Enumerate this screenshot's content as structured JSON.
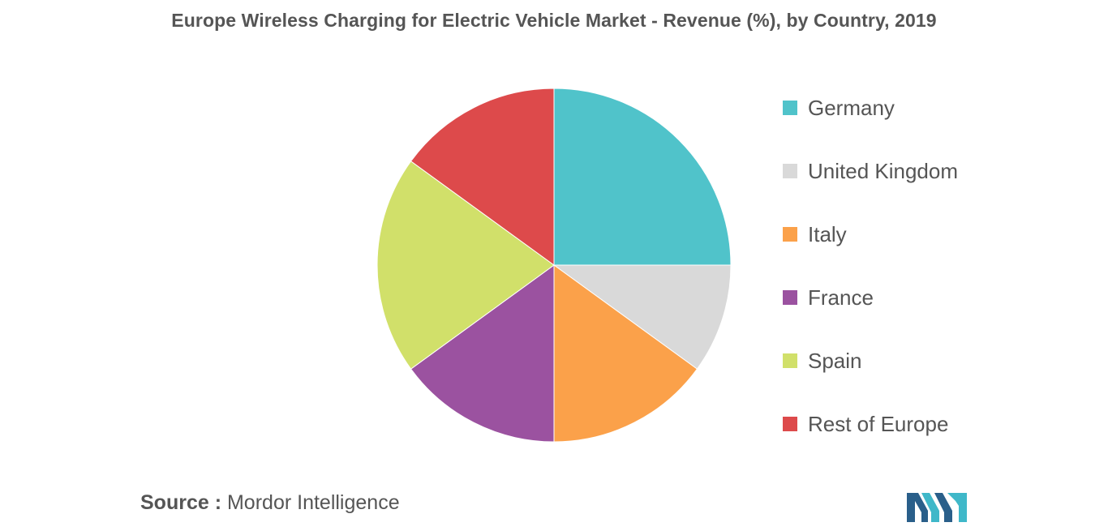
{
  "title": "Europe Wireless Charging for Electric Vehicle Market - Revenue (%), by Country, 2019",
  "source": {
    "label": "Source :",
    "text": "Mordor Intelligence"
  },
  "logo": {
    "icon": "mordor-intelligence-logo",
    "colors": [
      "#2a5f8a",
      "#3fb8c9"
    ]
  },
  "chart_data": {
    "type": "pie",
    "title": "Europe Wireless Charging for Electric Vehicle Market - Revenue (%), by Country, 2019",
    "start_angle": "12 o'clock",
    "direction": "clockwise",
    "legend_position": "right",
    "slices": [
      {
        "label": "Germany",
        "value": 25,
        "color": "#50c3ca"
      },
      {
        "label": "United Kingdom",
        "value": 10,
        "color": "#d9d9d9"
      },
      {
        "label": "Italy",
        "value": 15,
        "color": "#fba14a"
      },
      {
        "label": "France",
        "value": 15,
        "color": "#9b52a0"
      },
      {
        "label": "Spain",
        "value": 20,
        "color": "#d1e06a"
      },
      {
        "label": "Rest of Europe",
        "value": 15,
        "color": "#dd4a4b"
      }
    ]
  }
}
